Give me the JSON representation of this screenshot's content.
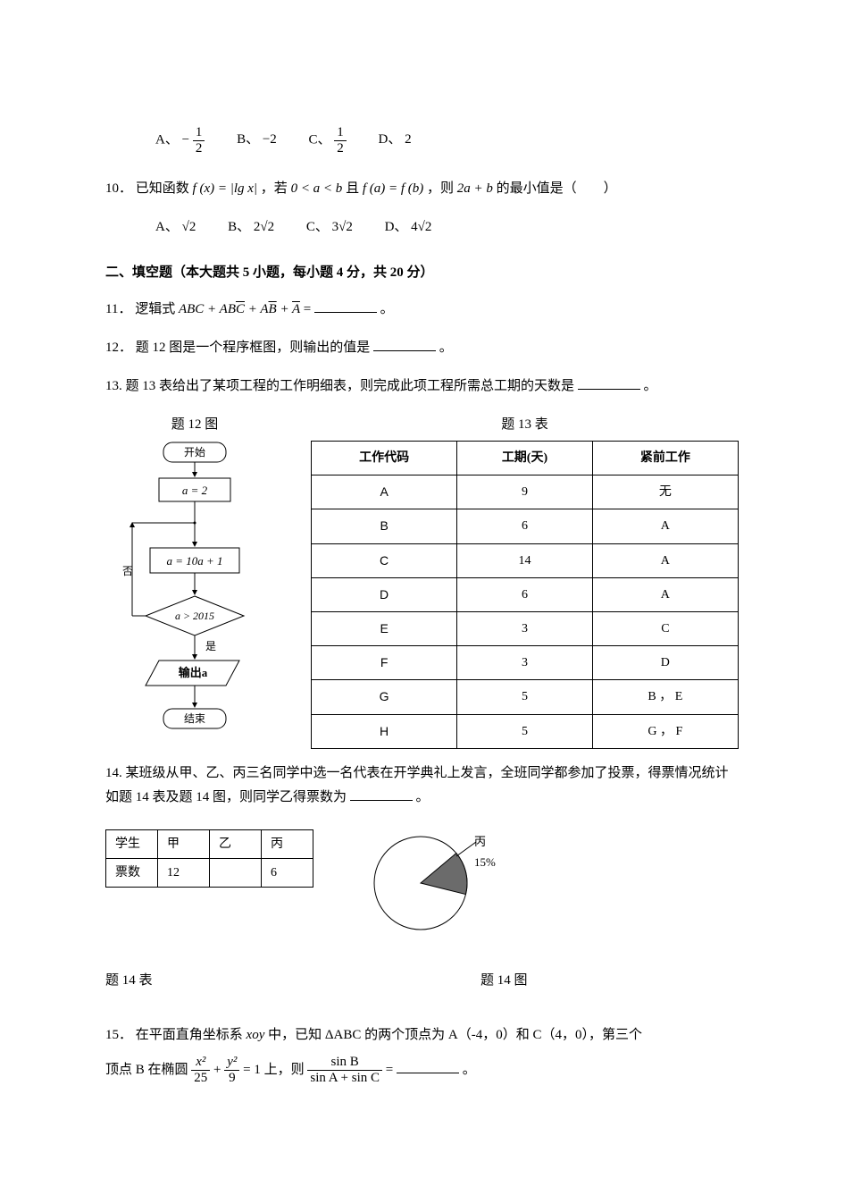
{
  "q9": {
    "options": {
      "A_label": "A、",
      "A_num": "1",
      "A_den": "2",
      "A_neg": "−",
      "B": "B、 −2",
      "C_label": "C、",
      "C_num": "1",
      "C_den": "2",
      "D": "D、 2"
    }
  },
  "q10": {
    "num": "10．",
    "text1": "已知函数 ",
    "fx": "f (x) = |lg x|",
    "text2": "，若 ",
    "cond": "0 < a < b",
    "text3": " 且 ",
    "eq": "f (a) = f (b)",
    "text4": "，则 ",
    "expr": "2a + b",
    "text5": " 的最小值是（　　）",
    "A": "A、 √2",
    "B": "B、 2√2",
    "C": "C、 3√2",
    "D": "D、 4√2"
  },
  "section2": "二、填空题（本大题共 5 小题，每小题 4 分，共 20 分）",
  "q11": {
    "num": "11．",
    "text1": "逻辑式 ",
    "expr_pre": "ABC + AB",
    "expr_c": "C",
    "expr_mid": " + A",
    "expr_b": "B",
    "expr_plus": " + ",
    "expr_a": "A",
    "eq": " =",
    "end": "。"
  },
  "q12": {
    "num": "12．",
    "text": "题 12 图是一个程序框图，则输出的值是",
    "end": "。"
  },
  "q13": {
    "num": "13.",
    "text": "题 13 表给出了某项工程的工作明细表，则完成此项工程所需总工期的天数是",
    "end": "。",
    "fig12_label": "题 12 图",
    "fig13_label": "题 13 表",
    "headers": [
      "工作代码",
      "工期(天)",
      "紧前工作"
    ],
    "rows": [
      [
        "A",
        "9",
        "无"
      ],
      [
        "B",
        "6",
        "A"
      ],
      [
        "C",
        "14",
        "A"
      ],
      [
        "D",
        "6",
        "A"
      ],
      [
        "E",
        "3",
        "C"
      ],
      [
        "F",
        "3",
        "D"
      ],
      [
        "G",
        "5",
        "B ， E"
      ],
      [
        "H",
        "5",
        "G ， F"
      ]
    ]
  },
  "flowchart": {
    "start": "开始",
    "step1": "a = 2",
    "step2": "a = 10a + 1",
    "cond": "a > 2015",
    "no": "否",
    "yes": "是",
    "output": "输出a",
    "end": "结束"
  },
  "q14": {
    "num": "14.",
    "text1": "某班级从甲、乙、丙三名同学中选一名代表在开学典礼上发言，全班同学都参加了投票，得票情况统计如题 14 表及题 14 图，则同学乙得票数为",
    "end": "。",
    "headers": [
      "学生",
      "甲",
      "乙",
      "丙"
    ],
    "row_label": "票数",
    "row": [
      "12",
      "",
      "6"
    ],
    "pie_label": "丙 15%",
    "pie_percent": 15,
    "pie_color": "#6b6b6b",
    "caption_table": "题 14 表",
    "caption_fig": "题 14 图"
  },
  "q15": {
    "num": "15．",
    "text1": "在平面直角坐标系 ",
    "xoy": "xoy",
    "text2": " 中，已知 ",
    "tri": "ΔABC",
    "text3": " 的两个顶点为 A（-4，0）和 C（4，0），第三个",
    "text4": "顶点 B 在椭圆 ",
    "ellipse_x": "x²",
    "ellipse_x_den": "25",
    "ellipse_plus": " + ",
    "ellipse_y": "y²",
    "ellipse_y_den": "9",
    "ellipse_eq": " = 1 上，则 ",
    "sinB": "sin B",
    "sinAC": "sin A + sin C",
    "eq": " = ",
    "end": "。"
  }
}
